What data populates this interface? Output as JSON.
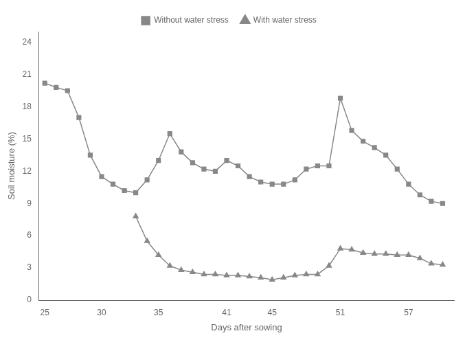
{
  "chart_data": {
    "type": "line",
    "xlabel": "Days after sowing",
    "ylabel": "Soil moisture (%)",
    "series": [
      {
        "name": "Without water stress",
        "color": "#888888",
        "marker": "square",
        "x": [
          25,
          26,
          27,
          28,
          29,
          30,
          31,
          32,
          33,
          34,
          35,
          36,
          37,
          38,
          39,
          40,
          41,
          42,
          43,
          44,
          45,
          46,
          47,
          48,
          49,
          50,
          51,
          52,
          53,
          54,
          55,
          56,
          57,
          58,
          59,
          60
        ],
        "values": [
          20.2,
          19.8,
          19.5,
          17.0,
          13.5,
          11.5,
          10.8,
          10.2,
          10.0,
          11.2,
          13.0,
          15.5,
          13.8,
          12.8,
          12.2,
          12.0,
          13.0,
          12.5,
          11.5,
          11.0,
          10.8,
          10.8,
          11.2,
          12.2,
          12.5,
          12.5,
          18.8,
          15.8,
          14.8,
          14.2,
          13.5,
          12.2,
          10.8,
          9.8,
          9.2,
          9.0
        ]
      },
      {
        "name": "With water stress",
        "color": "#888888",
        "marker": "triangle",
        "x": [
          33,
          34,
          35,
          36,
          37,
          38,
          39,
          40,
          41,
          42,
          43,
          44,
          45,
          46,
          47,
          48,
          49,
          50,
          51,
          52,
          53,
          54,
          55,
          56,
          57,
          58,
          59,
          60
        ],
        "values": [
          7.8,
          5.5,
          4.2,
          3.2,
          2.8,
          2.6,
          2.4,
          2.4,
          2.3,
          2.3,
          2.2,
          2.1,
          1.9,
          2.1,
          2.3,
          2.4,
          2.4,
          3.2,
          4.8,
          4.7,
          4.4,
          4.3,
          4.3,
          4.2,
          4.2,
          3.9,
          3.4,
          3.3
        ]
      }
    ],
    "xlim": [
      24.5,
      61
    ],
    "xticks": [
      25,
      30,
      35,
      41,
      45,
      51,
      57
    ],
    "ylim": [
      0,
      25
    ],
    "yticks": [
      0,
      3,
      6,
      9,
      12,
      15,
      18,
      21,
      24
    ],
    "grid": false,
    "legend": "top"
  }
}
